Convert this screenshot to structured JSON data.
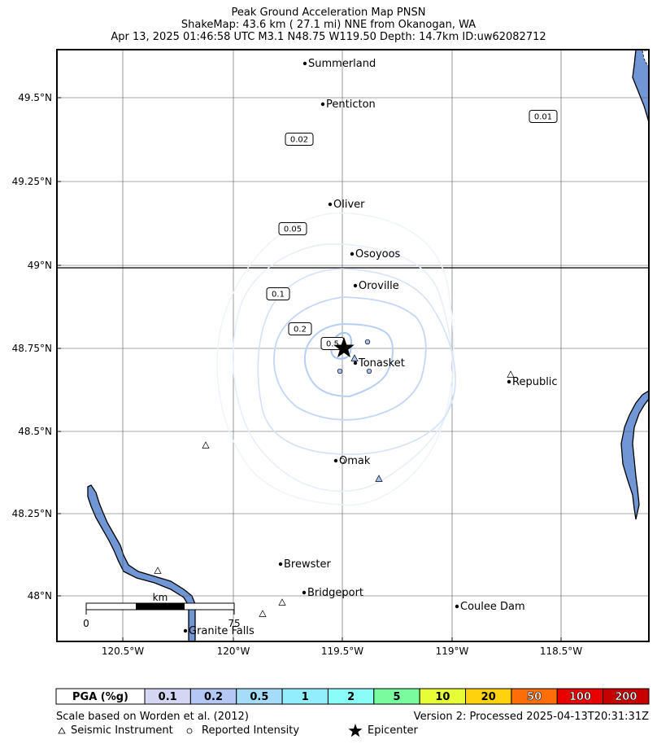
{
  "title": {
    "line1": "Peak Ground Acceleration Map PNSN",
    "line2": "ShakeMap: 43.6 km (  27.1 mi) NNE from Okanogan, WA",
    "line3": "Apr 13, 2025 01:46:58 UTC M3.1 N48.75 W119.50 Depth: 14.7km ID:uw62082712"
  },
  "axes": {
    "lat_ticks": [
      "49.5°N",
      "49.25°N",
      "49°N",
      "48.75°N",
      "48.5°N",
      "48.25°N",
      "48°N"
    ],
    "lon_ticks": [
      "120.5°W",
      "120°W",
      "119.5°W",
      "119°W",
      "118.5°W"
    ]
  },
  "cities": [
    {
      "name": "Summerland"
    },
    {
      "name": "Penticton"
    },
    {
      "name": "Oliver"
    },
    {
      "name": "Osoyoos"
    },
    {
      "name": "Oroville"
    },
    {
      "name": "Tonasket"
    },
    {
      "name": "Republic"
    },
    {
      "name": "Omak"
    },
    {
      "name": "Brewster"
    },
    {
      "name": "Bridgeport"
    },
    {
      "name": "Coulee Dam"
    },
    {
      "name": "Granite Falls"
    }
  ],
  "contour_labels": [
    "0.01",
    "0.02",
    "0.05",
    "0.1",
    "0.2",
    "0.5"
  ],
  "scale_bar": {
    "unit": "km",
    "min": "0",
    "max": "75"
  },
  "legend": {
    "label": "PGA (%g)",
    "bins": [
      {
        "value": "0.1",
        "color": "#d4d6f3"
      },
      {
        "value": "0.2",
        "color": "#b3c8f5"
      },
      {
        "value": "0.5",
        "color": "#a5dcf9"
      },
      {
        "value": "1",
        "color": "#93eefb"
      },
      {
        "value": "2",
        "color": "#8bfdf9"
      },
      {
        "value": "5",
        "color": "#7afb9d"
      },
      {
        "value": "10",
        "color": "#e5fe35"
      },
      {
        "value": "20",
        "color": "#fed20d"
      },
      {
        "value": "50",
        "color": "#fd6e09"
      },
      {
        "value": "100",
        "color": "#e90000"
      },
      {
        "value": "200",
        "color": "#c70000"
      }
    ]
  },
  "footer": {
    "scale_note": "Scale based on Worden et al. (2012)",
    "version": "Version 2: Processed 2025-04-13T20:31:31Z",
    "key_instrument": "Seismic Instrument",
    "key_intensity": "Reported Intensity",
    "key_epicenter": "Epicenter"
  },
  "colors": {
    "water": "#7096d5",
    "contour": "#b7cff5"
  }
}
